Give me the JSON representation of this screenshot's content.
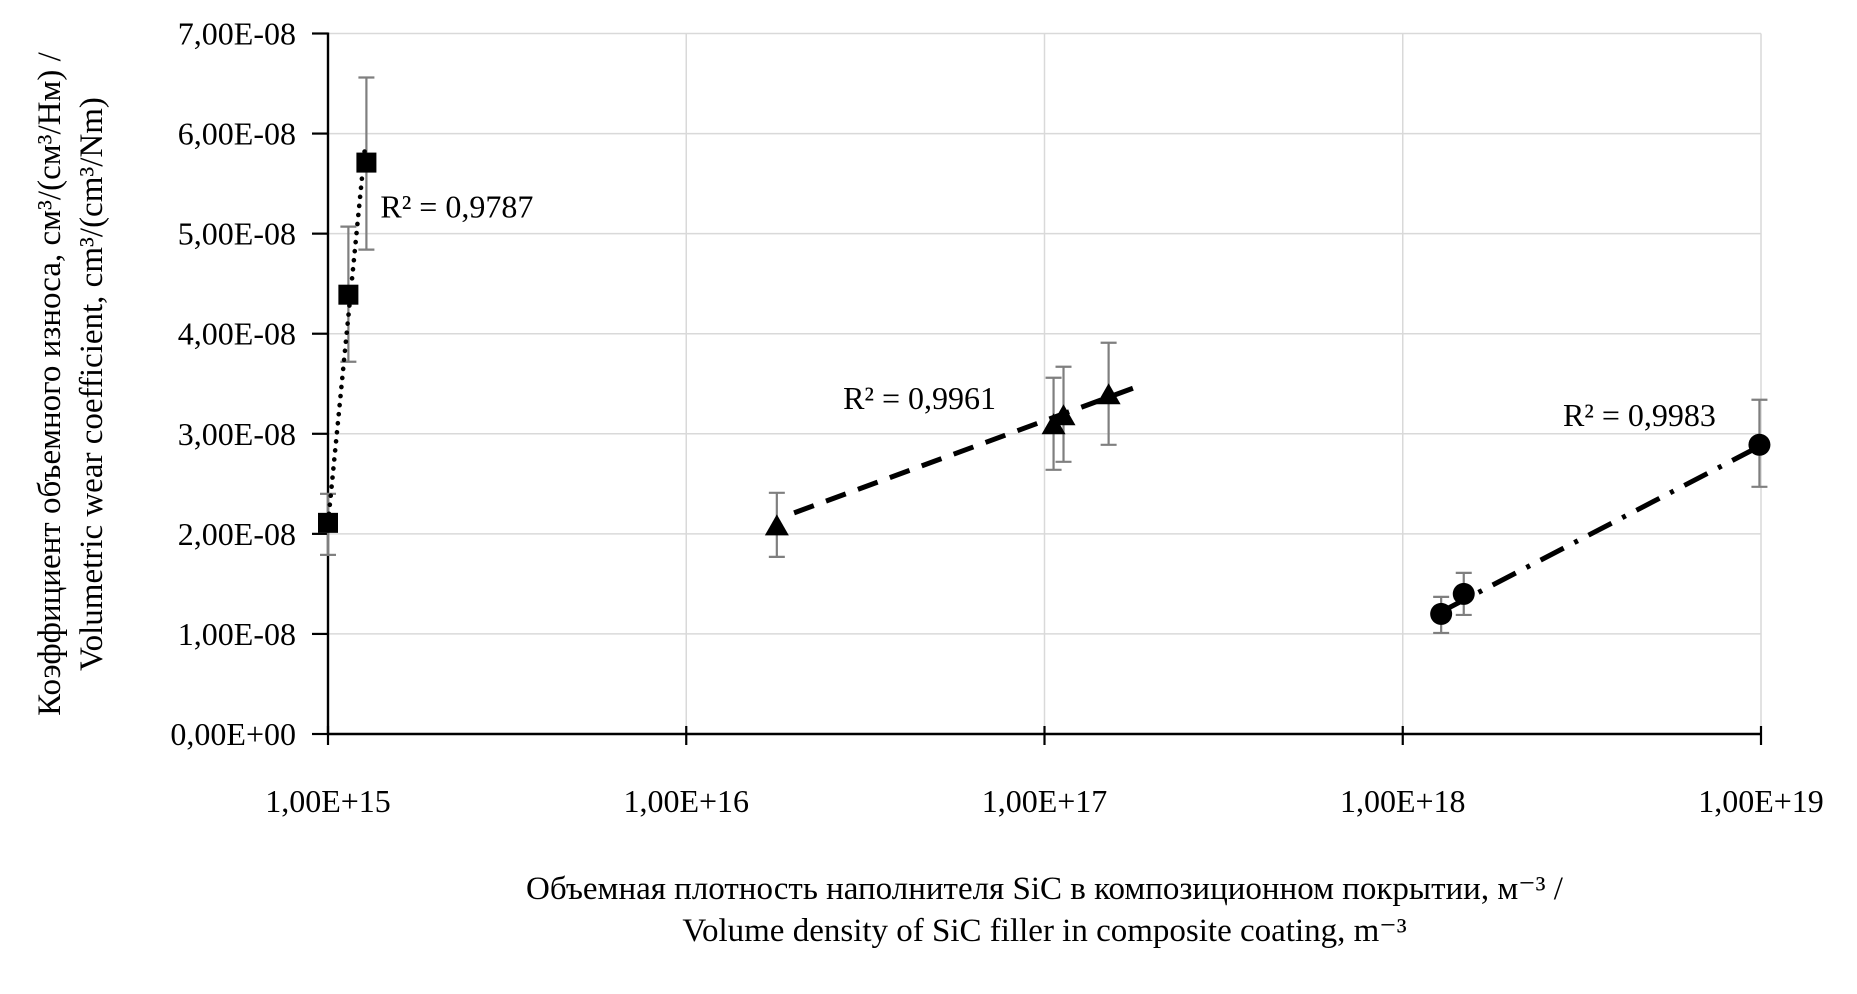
{
  "chart_data": {
    "type": "scatter",
    "title": "",
    "x_axis": {
      "scale": "log",
      "min": 1000000000000000.0,
      "max": 1e+19,
      "tick_values": [
        1000000000000000.0,
        1e+16,
        1e+17,
        1e+18,
        1e+19
      ],
      "tick_labels": [
        "1,00E+15",
        "1,00E+16",
        "1,00E+17",
        "1,00E+18",
        "1,00E+19"
      ],
      "label_line1": "Объемная плотность наполнителя SiC в композиционном покрытии, м⁻³ /",
      "label_line2": "Volume density of SiC filler in composite coating, m⁻³"
    },
    "y_axis": {
      "scale": "linear",
      "min": 0,
      "max": 7e-08,
      "tick_values": [
        0,
        1e-08,
        2e-08,
        3e-08,
        4e-08,
        5e-08,
        6e-08,
        7e-08
      ],
      "tick_labels": [
        "0,00E+00",
        "1,00E-08",
        "2,00E-08",
        "3,00E-08",
        "4,00E-08",
        "5,00E-08",
        "6,00E-08",
        "7,00E-08"
      ],
      "label_line1": "Коэффициент объемного износа, см³/(см³/Нм) /",
      "label_line2": "Volumetric wear coefficient, cm³/(cm³/Nm)"
    },
    "grid": true,
    "legend": "none",
    "series": [
      {
        "name": "squares-low-density",
        "marker": "square",
        "trend_style": "dotted",
        "r2_label": {
          "text": "R² = 0,9787",
          "x": 1400000000000000.0,
          "y": 5.27e-08
        },
        "points": [
          {
            "x": 1000000000000000.0,
            "y": 2.11e-08,
            "err_lo": 1.79e-08,
            "err_hi": 2.4e-08
          },
          {
            "x": 1140000000000000.0,
            "y": 4.39e-08,
            "err_lo": 3.72e-08,
            "err_hi": 5.07e-08
          },
          {
            "x": 1280000000000000.0,
            "y": 5.71e-08,
            "err_lo": 4.84e-08,
            "err_hi": 6.56e-08
          }
        ],
        "trend_points": [
          [
            1006000000000000.0,
            2.2e-08
          ],
          [
            1268000000000000.0,
            5.86e-08
          ]
        ]
      },
      {
        "name": "triangles-mid-density",
        "marker": "triangle",
        "trend_style": "dashed",
        "r2_label": {
          "text": "R² = 0,9961",
          "x": 2.74e+16,
          "y": 3.36e-08
        },
        "points": [
          {
            "x": 1.79e+16,
            "y": 2.08e-08,
            "err_lo": 1.77e-08,
            "err_hi": 2.41e-08
          },
          {
            "x": 1.06e+17,
            "y": 3.09e-08,
            "err_lo": 2.64e-08,
            "err_hi": 3.56e-08
          },
          {
            "x": 1.13e+17,
            "y": 3.18e-08,
            "err_lo": 2.72e-08,
            "err_hi": 3.67e-08
          },
          {
            "x": 1.51e+17,
            "y": 3.39e-08,
            "err_lo": 2.89e-08,
            "err_hi": 3.91e-08
          }
        ],
        "trend_points": [
          [
            2e+16,
            2.21e-08
          ],
          [
            1.78e+17,
            3.46e-08
          ]
        ]
      },
      {
        "name": "circles-high-density",
        "marker": "circle",
        "trend_style": "dashdot",
        "r2_label": {
          "text": "R² = 0,9983",
          "x": 2.8e+18,
          "y": 3.19e-08
        },
        "points": [
          {
            "x": 1.28e+18,
            "y": 1.2e-08,
            "err_lo": 1.01e-08,
            "err_hi": 1.37e-08
          },
          {
            "x": 1.48e+18,
            "y": 1.4e-08,
            "err_lo": 1.19e-08,
            "err_hi": 1.61e-08
          },
          {
            "x": 9.9e+18,
            "y": 2.89e-08,
            "err_lo": 2.47e-08,
            "err_hi": 3.34e-08
          }
        ],
        "trend_points": [
          [
            1.31e+18,
            1.24e-08
          ],
          [
            9.85e+18,
            2.87e-08
          ]
        ]
      }
    ],
    "colors": {
      "marker": "#000000",
      "trendline": "#000000",
      "error_bar": "#7f7f7f",
      "gridline": "#d9d9d9",
      "axis": "#000000",
      "background": "#ffffff"
    }
  }
}
